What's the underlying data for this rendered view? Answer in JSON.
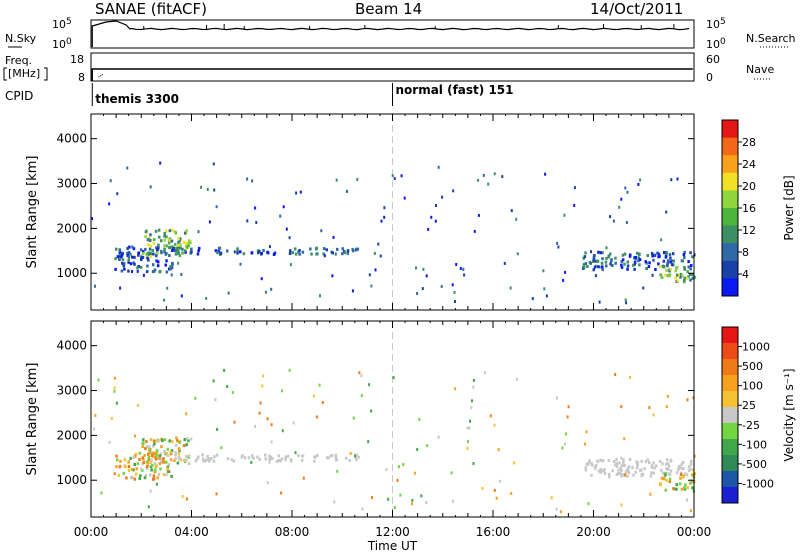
{
  "header": {
    "title": "SANAE (fitACF)",
    "beam": "Beam 14",
    "date": "14/Oct/2011"
  },
  "panels": {
    "nsky": {
      "label": "N.Sky",
      "ticks": [
        "10^5",
        "10^0"
      ]
    },
    "nsearch": {
      "label": "N.Search",
      "ticks": [
        "10^5",
        "10^0"
      ]
    },
    "freq": {
      "label_line1": "Freq.",
      "label_line2": "[MHz]",
      "ticks": [
        "18",
        "8"
      ]
    },
    "nave": {
      "label": "Nave",
      "ticks": [
        "60",
        "0"
      ]
    },
    "cpid": {
      "label": "CPID",
      "modes": [
        "themis 3300",
        "normal (fast) 151"
      ]
    }
  },
  "chart_data": [
    {
      "type": "heatmap",
      "title": "",
      "ylabel": "Slant Range [km]",
      "xlabel": "",
      "ylim": [
        180,
        4550
      ],
      "yticks": [
        "4000",
        "3000",
        "2000",
        "1000"
      ],
      "xticks": [],
      "colorbar": {
        "label": "Power [dB]",
        "ticks": [
          "28",
          "24",
          "20",
          "16",
          "12",
          "8",
          "4"
        ],
        "colors": [
          "#0a19f0",
          "#1a41a8",
          "#2f6aa6",
          "#3b8f63",
          "#4cb43c",
          "#8ed63c",
          "#f2e026",
          "#f7a21a",
          "#f26818",
          "#e41616"
        ]
      },
      "scatter_regions": [
        {
          "t": [
            0.9,
            3.2
          ],
          "range": [
            1050,
            1650
          ],
          "value": "8-16 dB"
        },
        {
          "t": [
            2.0,
            3.9
          ],
          "range": [
            1400,
            2000
          ],
          "value": "12-20 dB"
        },
        {
          "t": [
            3.2,
            10.7
          ],
          "range": [
            1450,
            1600
          ],
          "value": "4-8 dB"
        },
        {
          "t": [
            19.5,
            23.9
          ],
          "range": [
            1100,
            1500
          ],
          "value": "4-12 dB"
        },
        {
          "t": [
            22.6,
            24.0
          ],
          "range": [
            800,
            1200
          ],
          "value": "12-20 dB"
        }
      ]
    },
    {
      "type": "heatmap",
      "title": "",
      "ylabel": "Slant Range [km]",
      "xlabel": "Time UT",
      "ylim": [
        180,
        4550
      ],
      "yticks": [
        "4000",
        "3000",
        "2000",
        "1000"
      ],
      "xticks": [
        "00:00",
        "04:00",
        "08:00",
        "12:00",
        "16:00",
        "20:00",
        "00:00"
      ],
      "xlim_hours": [
        0,
        24
      ],
      "colorbar": {
        "label": "Velocity [m s⁻¹]",
        "ticks": [
          "1000",
          "500",
          "100",
          "25",
          "-25",
          "-100",
          "-500",
          "-1000"
        ],
        "colors": [
          "#1a1fd0",
          "#1d55a8",
          "#2f8a55",
          "#3ea84a",
          "#72d640",
          "#c8c8c8",
          "#f5c233",
          "#f7a11f",
          "#f07a18",
          "#ec4a16",
          "#e61616"
        ]
      },
      "scatter_regions": [
        {
          "t": [
            0.9,
            3.2
          ],
          "range": [
            1050,
            1650
          ],
          "value": "-100 to 100 m/s"
        },
        {
          "t": [
            2.0,
            3.9
          ],
          "range": [
            1400,
            2000
          ],
          "value": "-500 to -25 m/s"
        },
        {
          "t": [
            3.2,
            10.7
          ],
          "range": [
            1450,
            1600
          ],
          "value": "-25 to 25 m/s"
        },
        {
          "t": [
            19.5,
            23.9
          ],
          "range": [
            1100,
            1500
          ],
          "value": "-25 to 25 m/s"
        },
        {
          "t": [
            22.6,
            24.0
          ],
          "range": [
            800,
            1200
          ],
          "value": "-500 to 100 m/s"
        }
      ]
    }
  ],
  "colors": {
    "dash": "#c8c8c8",
    "axis": "#000000",
    "trace": "#000000"
  }
}
